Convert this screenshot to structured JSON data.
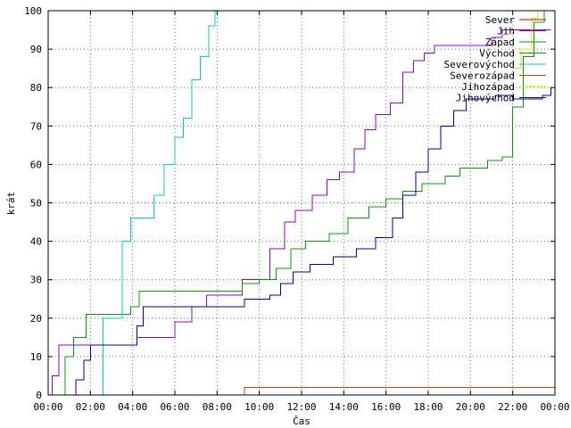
{
  "chart_data": {
    "type": "line",
    "title": "",
    "xlabel": "Čas",
    "ylabel": "krát",
    "xlim": [
      0,
      24
    ],
    "ylim": [
      0,
      100
    ],
    "x_tick_labels": [
      "00:00",
      "02:00",
      "04:00",
      "06:00",
      "08:00",
      "10:00",
      "12:00",
      "14:00",
      "16:00",
      "18:00",
      "20:00",
      "22:00",
      "00:00"
    ],
    "y_tick_labels": [
      "0",
      "10",
      "20",
      "30",
      "40",
      "50",
      "60",
      "70",
      "80",
      "90",
      "100"
    ],
    "grid": true,
    "legend_position": "top-right",
    "series": [
      {
        "name": "Sever",
        "color": "#cc0000",
        "points": []
      },
      {
        "name": "Jih",
        "color": "#9400d3",
        "points": [
          [
            0,
            0
          ],
          [
            0.2,
            5
          ],
          [
            0.5,
            13
          ],
          [
            1.5,
            13
          ],
          [
            3.5,
            13
          ],
          [
            4.2,
            15
          ],
          [
            5.5,
            15
          ],
          [
            6,
            19
          ],
          [
            6.8,
            23
          ],
          [
            7.5,
            26
          ],
          [
            9,
            26
          ],
          [
            9.2,
            30
          ],
          [
            10,
            30
          ],
          [
            10.5,
            38
          ],
          [
            11.2,
            45
          ],
          [
            11.7,
            48
          ],
          [
            12.5,
            52
          ],
          [
            13.2,
            56
          ],
          [
            13.8,
            58
          ],
          [
            14.5,
            64
          ],
          [
            15,
            69
          ],
          [
            15.5,
            73
          ],
          [
            16.2,
            76
          ],
          [
            16.8,
            84
          ],
          [
            17.3,
            87
          ],
          [
            17.8,
            89
          ],
          [
            18.3,
            91
          ],
          [
            20.8,
            91
          ],
          [
            21,
            93
          ],
          [
            21.5,
            95
          ],
          [
            23,
            95
          ],
          [
            23.8,
            95
          ]
        ]
      },
      {
        "name": "Západ",
        "color": "#00a000",
        "points": [
          [
            0.5,
            0
          ],
          [
            0.8,
            10
          ],
          [
            1.2,
            15
          ],
          [
            1.8,
            21
          ],
          [
            2.8,
            21
          ],
          [
            3.9,
            23
          ],
          [
            4.3,
            27
          ],
          [
            5,
            27
          ],
          [
            9,
            27
          ],
          [
            9.2,
            29
          ],
          [
            10,
            30
          ],
          [
            10.8,
            33
          ],
          [
            11.5,
            38
          ],
          [
            12.2,
            40
          ],
          [
            13.3,
            42
          ],
          [
            14.2,
            46
          ],
          [
            15.2,
            49
          ],
          [
            16,
            51
          ],
          [
            16.8,
            53
          ],
          [
            17.7,
            55
          ],
          [
            18.8,
            57
          ],
          [
            19.5,
            59
          ],
          [
            20.5,
            59
          ],
          [
            20.8,
            61
          ],
          [
            21.5,
            62
          ],
          [
            22,
            75
          ],
          [
            22.5,
            88
          ],
          [
            23,
            97
          ],
          [
            23.5,
            100
          ]
        ]
      },
      {
        "name": "Východ",
        "color": "#00a000",
        "points": []
      },
      {
        "name": "Severovýchod",
        "color": "#00cccc",
        "points": [
          [
            2,
            0
          ],
          [
            2.6,
            20
          ],
          [
            3.5,
            40
          ],
          [
            3.9,
            46
          ],
          [
            4.6,
            46
          ],
          [
            5,
            52
          ],
          [
            5.5,
            60
          ],
          [
            6,
            67
          ],
          [
            6.4,
            72
          ],
          [
            6.8,
            82
          ],
          [
            7.2,
            88
          ],
          [
            7.6,
            96
          ],
          [
            7.9,
            100
          ]
        ]
      },
      {
        "name": "Severozápad",
        "color": "#cc4400",
        "points": [
          [
            0,
            0
          ],
          [
            9.2,
            0
          ],
          [
            9.3,
            2
          ],
          [
            24,
            2
          ]
        ]
      },
      {
        "name": "Jihozápad",
        "color": "#e0e000",
        "points": [
          [
            22,
            85
          ],
          [
            22.4,
            90
          ],
          [
            22.9,
            98
          ],
          [
            23.2,
            100
          ]
        ]
      },
      {
        "name": "Jihovýchod",
        "color": "#0000aa",
        "points": [
          [
            0.9,
            0
          ],
          [
            1.3,
            4
          ],
          [
            1.7,
            9
          ],
          [
            2,
            13
          ],
          [
            3.3,
            13
          ],
          [
            4,
            13
          ],
          [
            4.2,
            18
          ],
          [
            4.5,
            23
          ],
          [
            5.5,
            23
          ],
          [
            9,
            23
          ],
          [
            9.3,
            25
          ],
          [
            10.5,
            26
          ],
          [
            11,
            29
          ],
          [
            11.6,
            32
          ],
          [
            12.4,
            34
          ],
          [
            13.5,
            36
          ],
          [
            14.6,
            38
          ],
          [
            15.5,
            41
          ],
          [
            16.3,
            46
          ],
          [
            16.8,
            52
          ],
          [
            17.4,
            58
          ],
          [
            18,
            64
          ],
          [
            18.6,
            70
          ],
          [
            19.2,
            74
          ],
          [
            19.8,
            77
          ],
          [
            20.5,
            77
          ],
          [
            21.2,
            78
          ],
          [
            22,
            77
          ],
          [
            22.5,
            77
          ],
          [
            23,
            77
          ],
          [
            23.4,
            78
          ],
          [
            23.8,
            80
          ]
        ]
      }
    ]
  }
}
